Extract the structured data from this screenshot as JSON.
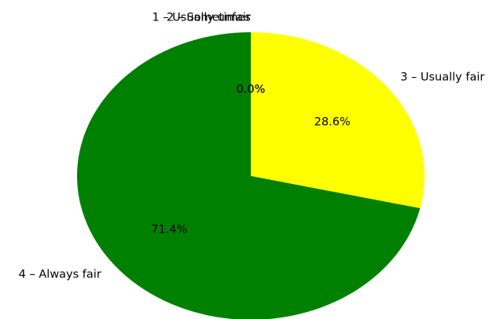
{
  "chart_data": {
    "type": "pie",
    "categories": [
      "1 – Usually unfair",
      "2 – Sometimes",
      "3 – Usually fair",
      "4 – Always fair"
    ],
    "values": [
      0.0,
      0.0,
      28.6,
      71.4
    ],
    "percent_labels": [
      "0.0%",
      "0.0%",
      "28.6%",
      "71.4%"
    ],
    "colors": [
      "#ff0000",
      "#ff8c00",
      "#ffff00",
      "#008000"
    ],
    "start_angle_deg": 90,
    "direction": "clockwise",
    "title": ""
  }
}
